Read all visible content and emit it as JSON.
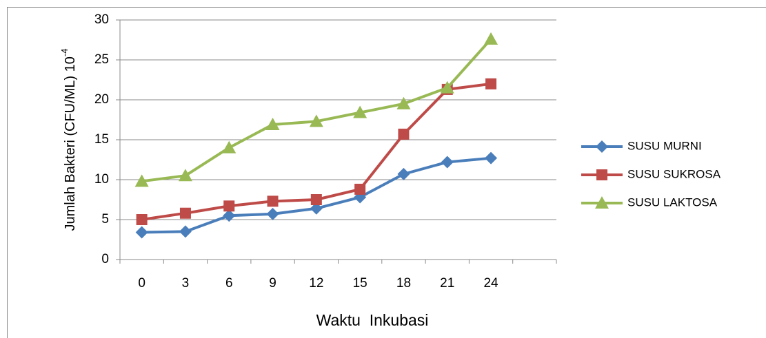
{
  "chart_data": {
    "type": "line",
    "x_label": "Waktu  Inkubasi",
    "y_label": "Jumlah Bakteri (CFU/ML) 10",
    "y_label_superscript": "-4",
    "categories": [
      "0",
      "3",
      "6",
      "9",
      "12",
      "15",
      "18",
      "21",
      "24",
      null
    ],
    "series": [
      {
        "name": "SUSU MURNI",
        "color": "#4a7ebb",
        "marker": "diamond",
        "values": [
          3.4,
          3.5,
          5.5,
          5.7,
          6.4,
          7.8,
          10.7,
          12.2,
          12.7,
          null
        ]
      },
      {
        "name": "SUSU SUKROSA",
        "color": "#be4b48",
        "marker": "square",
        "values": [
          5.0,
          5.8,
          6.7,
          7.3,
          7.5,
          8.8,
          15.7,
          21.3,
          22.0,
          null
        ]
      },
      {
        "name": "SUSU LAKTOSA",
        "color": "#98b954",
        "marker": "triangle",
        "values": [
          9.8,
          10.5,
          14.0,
          16.9,
          17.3,
          18.4,
          19.5,
          21.5,
          27.6,
          null
        ]
      }
    ],
    "ylim": [
      0,
      30
    ],
    "yticks": [
      0,
      5,
      10,
      15,
      20,
      25,
      30
    ],
    "grid": true,
    "legend": "right"
  }
}
